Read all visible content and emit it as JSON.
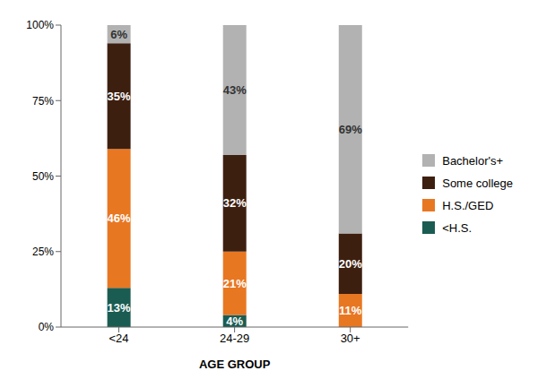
{
  "chart_data": {
    "type": "bar",
    "stacked": true,
    "xlabel": "AGE GROUP",
    "categories": [
      "<24",
      "24-29",
      "30+"
    ],
    "series": [
      {
        "name": "<H.S.",
        "color": "#1a5c52",
        "values": [
          13,
          4,
          0
        ],
        "value_labels": [
          "13%",
          "4%",
          null
        ]
      },
      {
        "name": "H.S./GED",
        "color": "#e87722",
        "values": [
          46,
          21,
          11
        ],
        "value_labels": [
          "46%",
          "21%",
          "11%"
        ]
      },
      {
        "name": "Some college",
        "color": "#3d1f10",
        "values": [
          35,
          32,
          20
        ],
        "value_labels": [
          "35%",
          "32%",
          "20%"
        ]
      },
      {
        "name": "Bachelor's+",
        "color": "#b2b2b2",
        "values": [
          6,
          43,
          69
        ],
        "value_labels": [
          "6%",
          "43%",
          "69%"
        ]
      }
    ],
    "ylim": [
      0,
      100
    ],
    "yticks": [
      {
        "value": 0,
        "label": "0%"
      },
      {
        "value": 25,
        "label": "25%"
      },
      {
        "value": 50,
        "label": "50%"
      },
      {
        "value": 75,
        "label": "75%"
      },
      {
        "value": 100,
        "label": "100%"
      }
    ],
    "grid": false,
    "legend": "right",
    "data_labels": true
  }
}
